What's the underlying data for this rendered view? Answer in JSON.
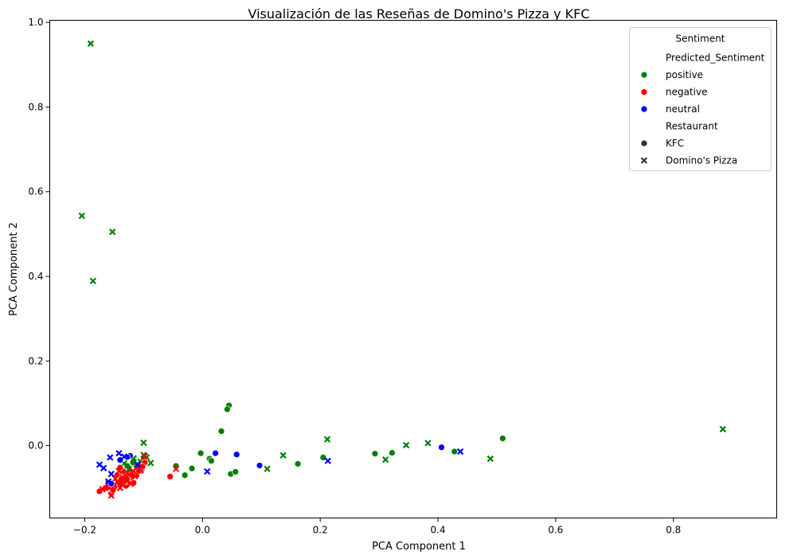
{
  "chart_data": {
    "type": "scatter",
    "title": "Visualización de las Reseñas de Domino's Pizza y KFC",
    "xlabel": "PCA Component 1",
    "ylabel": "PCA Component 2",
    "xlim": [
      -0.2595,
      0.9755
    ],
    "ylim": [
      -0.171,
      1.005
    ],
    "xticks": [
      -0.2,
      0.0,
      0.2,
      0.4,
      0.6,
      0.8
    ],
    "xtick_labels": [
      "−0.2",
      "0.0",
      "0.2",
      "0.4",
      "0.6",
      "0.8"
    ],
    "yticks": [
      0.0,
      0.2,
      0.4,
      0.6,
      0.8,
      1.0
    ],
    "ytick_labels": [
      "0.0",
      "0.2",
      "0.4",
      "0.6",
      "0.8",
      "1.0"
    ],
    "grid": false,
    "legend": {
      "placement": "top-right",
      "title": "Sentiment",
      "sections": [
        {
          "header": "Predicted_Sentiment",
          "entries": [
            {
              "label": "positive",
              "marker": "circle",
              "color": "#008000"
            },
            {
              "label": "negative",
              "marker": "circle",
              "color": "#ff0000"
            },
            {
              "label": "neutral",
              "marker": "circle",
              "color": "#0000ff"
            }
          ]
        },
        {
          "header": "Restaurant",
          "entries": [
            {
              "label": "KFC",
              "marker": "circle",
              "color": "#333333"
            },
            {
              "label": "Domino's Pizza",
              "marker": "x",
              "color": "#333333"
            }
          ]
        }
      ]
    },
    "colors": {
      "positive": "#008000",
      "negative": "#ff0000",
      "neutral": "#0000ff"
    },
    "series": [
      {
        "sentiment": "positive",
        "restaurant": "KFC",
        "marker": "circle",
        "points": [
          [
            0.045,
            0.095
          ],
          [
            0.042,
            0.086
          ],
          [
            0.032,
            0.034
          ],
          [
            0.51,
            0.017
          ],
          [
            -0.003,
            -0.018
          ],
          [
            0.058,
            -0.021
          ],
          [
            0.012,
            -0.031
          ],
          [
            0.015,
            -0.036
          ],
          [
            -0.018,
            -0.054
          ],
          [
            -0.03,
            -0.07
          ],
          [
            0.048,
            -0.067
          ],
          [
            0.056,
            -0.062
          ],
          [
            0.162,
            -0.043
          ],
          [
            0.205,
            -0.028
          ],
          [
            0.293,
            -0.019
          ],
          [
            0.322,
            -0.017
          ],
          [
            0.428,
            -0.014
          ],
          [
            -0.045,
            -0.048
          ],
          [
            -0.105,
            -0.06
          ],
          [
            -0.11,
            -0.052
          ],
          [
            -0.128,
            -0.048
          ],
          [
            -0.118,
            -0.04
          ],
          [
            -0.1,
            -0.03
          ]
        ]
      },
      {
        "sentiment": "positive",
        "restaurant": "Domino's Pizza",
        "marker": "x",
        "points": [
          [
            -0.19,
            0.95
          ],
          [
            -0.205,
            0.543
          ],
          [
            -0.153,
            0.505
          ],
          [
            -0.186,
            0.389
          ],
          [
            0.884,
            0.039
          ],
          [
            0.212,
            0.015
          ],
          [
            0.346,
            0.001
          ],
          [
            0.383,
            0.006
          ],
          [
            0.137,
            -0.023
          ],
          [
            0.311,
            -0.033
          ],
          [
            0.489,
            -0.031
          ],
          [
            0.11,
            -0.055
          ],
          [
            -0.1,
            0.007
          ],
          [
            -0.088,
            -0.041
          ],
          [
            -0.095,
            -0.028
          ],
          [
            -0.112,
            -0.045
          ],
          [
            -0.117,
            -0.03
          ],
          [
            -0.125,
            -0.055
          ],
          [
            -0.105,
            -0.038
          ],
          [
            -0.1,
            -0.022
          ],
          [
            -0.133,
            -0.042
          ],
          [
            -0.108,
            -0.05
          ]
        ]
      },
      {
        "sentiment": "negative",
        "restaurant": "KFC",
        "marker": "circle",
        "points": [
          [
            -0.055,
            -0.073
          ],
          [
            -0.175,
            -0.108
          ],
          [
            -0.155,
            -0.113
          ],
          [
            -0.14,
            -0.09
          ],
          [
            -0.13,
            -0.095
          ],
          [
            -0.125,
            -0.085
          ],
          [
            -0.145,
            -0.07
          ],
          [
            -0.12,
            -0.075
          ],
          [
            -0.135,
            -0.06
          ],
          [
            -0.115,
            -0.065
          ],
          [
            -0.103,
            -0.055
          ],
          [
            -0.098,
            -0.04
          ],
          [
            -0.112,
            -0.07
          ],
          [
            -0.128,
            -0.078
          ],
          [
            -0.14,
            -0.052
          ],
          [
            -0.165,
            -0.1
          ],
          [
            -0.15,
            -0.098
          ],
          [
            -0.133,
            -0.085
          ],
          [
            -0.102,
            -0.05
          ],
          [
            -0.12,
            -0.07
          ],
          [
            -0.138,
            -0.079
          ],
          [
            -0.108,
            -0.06
          ],
          [
            -0.152,
            -0.105
          ],
          [
            -0.117,
            -0.088
          ]
        ]
      },
      {
        "sentiment": "negative",
        "restaurant": "Domino's Pizza",
        "marker": "x",
        "points": [
          [
            -0.045,
            -0.055
          ],
          [
            -0.17,
            -0.103
          ],
          [
            -0.155,
            -0.118
          ],
          [
            -0.16,
            -0.09
          ],
          [
            -0.145,
            -0.085
          ],
          [
            -0.14,
            -0.1
          ],
          [
            -0.13,
            -0.08
          ],
          [
            -0.125,
            -0.068
          ],
          [
            -0.115,
            -0.072
          ],
          [
            -0.135,
            -0.075
          ],
          [
            -0.105,
            -0.058
          ],
          [
            -0.098,
            -0.025
          ],
          [
            -0.118,
            -0.06
          ],
          [
            -0.128,
            -0.065
          ],
          [
            -0.142,
            -0.06
          ],
          [
            -0.15,
            -0.095
          ],
          [
            -0.138,
            -0.088
          ],
          [
            -0.122,
            -0.09
          ],
          [
            -0.11,
            -0.05
          ],
          [
            -0.148,
            -0.078
          ],
          [
            -0.132,
            -0.07
          ],
          [
            -0.158,
            -0.1
          ]
        ]
      },
      {
        "sentiment": "neutral",
        "restaurant": "KFC",
        "marker": "circle",
        "points": [
          [
            0.022,
            -0.018
          ],
          [
            0.058,
            -0.021
          ],
          [
            0.097,
            -0.047
          ],
          [
            0.406,
            -0.004
          ],
          [
            -0.123,
            -0.024
          ],
          [
            -0.14,
            -0.034
          ],
          [
            -0.128,
            -0.027
          ],
          [
            -0.155,
            -0.09
          ]
        ]
      },
      {
        "sentiment": "neutral",
        "restaurant": "Domino's Pizza",
        "marker": "x",
        "points": [
          [
            -0.175,
            -0.045
          ],
          [
            -0.168,
            -0.053
          ],
          [
            -0.157,
            -0.028
          ],
          [
            -0.142,
            -0.018
          ],
          [
            -0.155,
            -0.067
          ],
          [
            -0.133,
            -0.026
          ],
          [
            0.008,
            -0.061
          ],
          [
            0.213,
            -0.036
          ],
          [
            0.438,
            -0.014
          ],
          [
            -0.11,
            -0.045
          ],
          [
            -0.16,
            -0.085
          ]
        ]
      }
    ]
  }
}
